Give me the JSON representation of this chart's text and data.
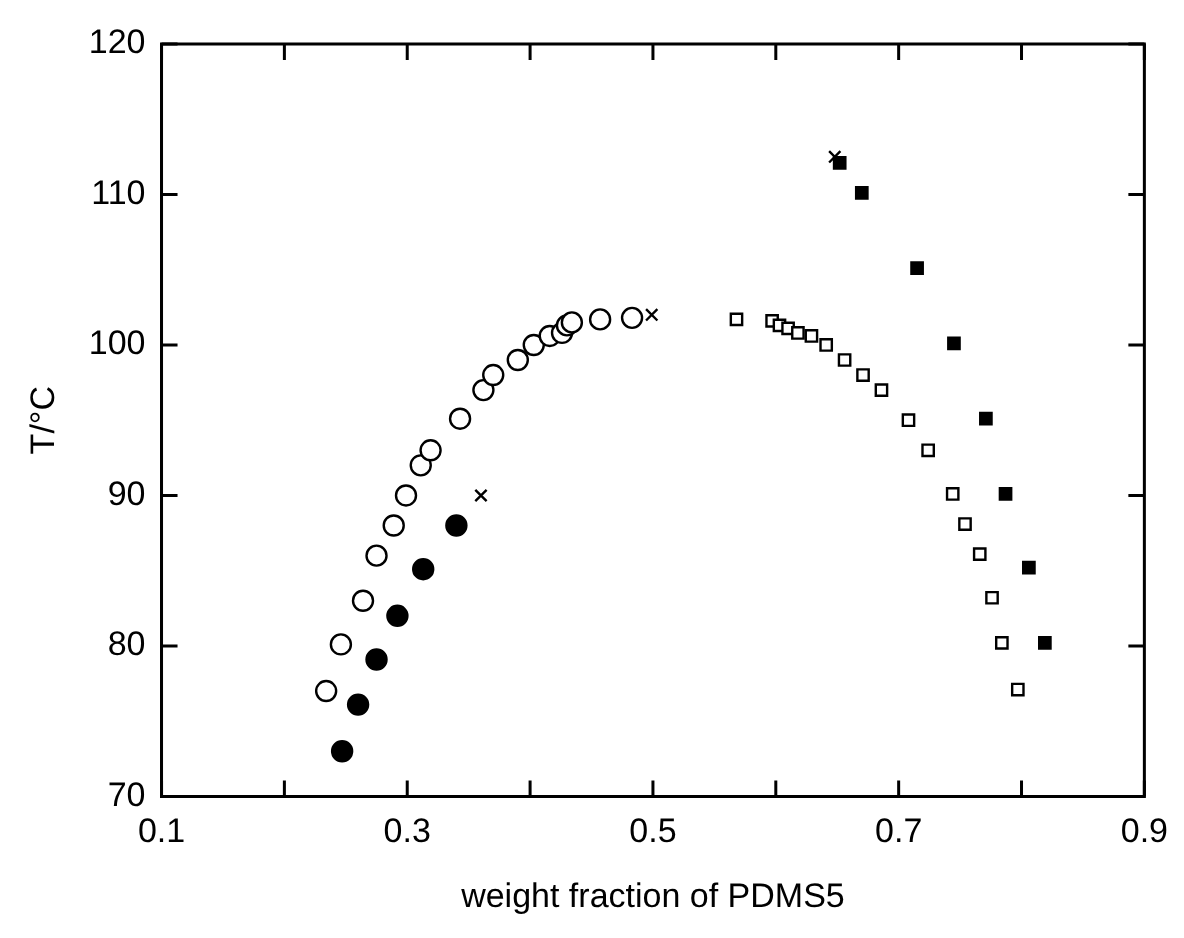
{
  "chart_data": {
    "type": "scatter",
    "xlabel": "weight fraction of PDMS5",
    "ylabel": "T/°C",
    "xlim": [
      0.1,
      0.9
    ],
    "ylim": [
      70,
      120
    ],
    "xticks": [
      0.1,
      {
        "value": 0.2,
        "label": null
      },
      0.3,
      {
        "value": 0.4,
        "label": null
      },
      0.5,
      {
        "value": 0.6,
        "label": null
      },
      0.7,
      {
        "value": 0.8,
        "label": null
      },
      0.9
    ],
    "yticks": [
      70,
      80,
      90,
      100,
      110,
      120
    ],
    "grid": false,
    "legend": false,
    "series": [
      {
        "marker": "circle",
        "color": "#ffffff",
        "x": [
          0.234,
          0.246,
          0.264,
          0.275,
          0.289,
          0.299,
          0.311,
          0.319,
          0.343,
          0.362,
          0.37,
          0.39,
          0.403,
          0.416,
          0.426,
          0.43,
          0.434,
          0.457,
          0.483
        ],
        "values": [
          77,
          80.1,
          83,
          86,
          88,
          90,
          92,
          93,
          95.1,
          97,
          98,
          99,
          100,
          100.6,
          100.8,
          101.3,
          101.5,
          101.7,
          101.8
        ]
      },
      {
        "marker": "circle",
        "color": "#000000",
        "x": [
          0.247,
          0.26,
          0.275,
          0.292,
          0.313,
          0.34
        ],
        "values": [
          73,
          76.1,
          79.1,
          82,
          85.1,
          88
        ]
      },
      {
        "marker": "square",
        "color": "#ffffff",
        "x": [
          0.568,
          0.597,
          0.603,
          0.61,
          0.618,
          0.629,
          0.641,
          0.656,
          0.671,
          0.686,
          0.708,
          0.724,
          0.744,
          0.754,
          0.766,
          0.776,
          0.784,
          0.797
        ],
        "values": [
          101.7,
          101.6,
          101.3,
          101.1,
          100.8,
          100.6,
          100,
          99,
          98,
          97,
          95,
          93,
          90.1,
          88.1,
          86.1,
          83.2,
          80.2,
          77.1
        ]
      },
      {
        "marker": "square",
        "color": "#000000",
        "x": [
          0.652,
          0.67,
          0.715,
          0.745,
          0.771,
          0.787,
          0.806,
          0.819
        ],
        "values": [
          112.1,
          110.1,
          105.1,
          100.1,
          95.1,
          90.1,
          85.2,
          80.2
        ]
      },
      {
        "marker": "cross",
        "color": "#000000",
        "x": [
          0.36,
          0.499,
          0.648
        ],
        "values": [
          90,
          102,
          112.5
        ]
      }
    ]
  }
}
